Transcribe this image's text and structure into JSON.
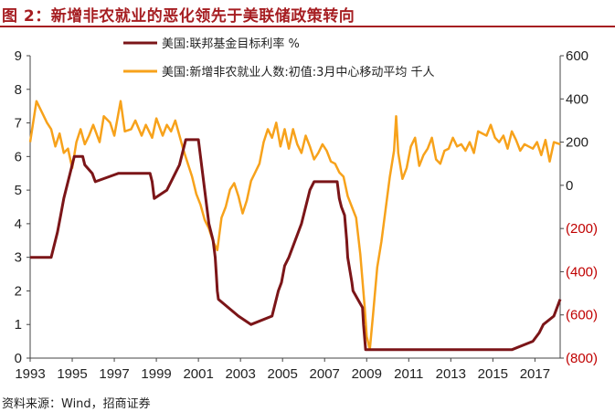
{
  "figure": {
    "title": "图 2：新增非农就业的恶化领先于美联储政策转向",
    "source": "资料来源：Wind，招商证券"
  },
  "colors": {
    "fed_rate": "#7b1518",
    "payrolls": "#f7a21b",
    "neg_label": "#c00000",
    "title": "#a61e22"
  },
  "chart_data": {
    "type": "line",
    "title": "新增非农就业的恶化领先于美联储政策转向",
    "x": {
      "range": [
        1993,
        2018.2
      ],
      "tick_values": [
        1993,
        1995,
        1997,
        1999,
        2001,
        2003,
        2005,
        2007,
        2009,
        2011,
        2013,
        2015,
        2017
      ],
      "tick_labels": [
        "1993",
        "1995",
        "1997",
        "1999",
        "2001",
        "2003",
        "2005",
        "2007",
        "2009",
        "2011",
        "2013",
        "2015",
        "2017"
      ]
    },
    "y_left": {
      "range": [
        0,
        9
      ],
      "ticks": [
        0,
        1,
        2,
        3,
        4,
        5,
        6,
        7,
        8,
        9
      ],
      "tick_labels": [
        "0",
        "1",
        "2",
        "3",
        "4",
        "5",
        "6",
        "7",
        "8",
        "9"
      ]
    },
    "y_right": {
      "range": [
        -800,
        600
      ],
      "ticks": [
        600,
        400,
        200,
        0,
        -200,
        -400,
        -600,
        -800
      ],
      "tick_labels": [
        "600",
        "400",
        "200",
        "0",
        "(200)",
        "(400)",
        "(600)",
        "(800)"
      ]
    },
    "series": [
      {
        "name": "美国:联邦基金目标利率 %",
        "axis": "left",
        "points": [
          [
            1993.0,
            3.0
          ],
          [
            1994.0,
            3.0
          ],
          [
            1994.1,
            3.25
          ],
          [
            1994.3,
            3.75
          ],
          [
            1994.45,
            4.25
          ],
          [
            1994.6,
            4.75
          ],
          [
            1994.9,
            5.5
          ],
          [
            1995.1,
            6.0
          ],
          [
            1995.5,
            6.0
          ],
          [
            1995.6,
            5.75
          ],
          [
            1995.95,
            5.5
          ],
          [
            1996.1,
            5.25
          ],
          [
            1997.2,
            5.5
          ],
          [
            1998.7,
            5.5
          ],
          [
            1998.8,
            5.25
          ],
          [
            1998.9,
            4.75
          ],
          [
            1999.5,
            5.0
          ],
          [
            1999.7,
            5.25
          ],
          [
            1999.9,
            5.5
          ],
          [
            2000.1,
            5.75
          ],
          [
            2000.2,
            6.0
          ],
          [
            2000.4,
            6.5
          ],
          [
            2001.0,
            6.5
          ],
          [
            2001.1,
            6.0
          ],
          [
            2001.2,
            5.5
          ],
          [
            2001.3,
            5.0
          ],
          [
            2001.4,
            4.5
          ],
          [
            2001.5,
            4.0
          ],
          [
            2001.6,
            3.75
          ],
          [
            2001.7,
            3.5
          ],
          [
            2001.8,
            3.0
          ],
          [
            2001.85,
            2.5
          ],
          [
            2001.9,
            2.0
          ],
          [
            2001.95,
            1.75
          ],
          [
            2002.9,
            1.25
          ],
          [
            2003.5,
            1.0
          ],
          [
            2004.5,
            1.25
          ],
          [
            2004.6,
            1.5
          ],
          [
            2004.8,
            2.0
          ],
          [
            2004.95,
            2.25
          ],
          [
            2005.1,
            2.75
          ],
          [
            2005.3,
            3.0
          ],
          [
            2005.6,
            3.5
          ],
          [
            2005.9,
            4.0
          ],
          [
            2006.1,
            4.5
          ],
          [
            2006.3,
            5.0
          ],
          [
            2006.5,
            5.25
          ],
          [
            2007.6,
            5.25
          ],
          [
            2007.7,
            4.75
          ],
          [
            2007.8,
            4.5
          ],
          [
            2007.95,
            4.25
          ],
          [
            2008.05,
            3.5
          ],
          [
            2008.1,
            3.0
          ],
          [
            2008.3,
            2.25
          ],
          [
            2008.35,
            2.0
          ],
          [
            2008.8,
            1.5
          ],
          [
            2008.85,
            1.0
          ],
          [
            2008.95,
            0.25
          ],
          [
            2015.9,
            0.25
          ],
          [
            2016.9,
            0.5
          ],
          [
            2017.2,
            0.75
          ],
          [
            2017.4,
            1.0
          ],
          [
            2017.9,
            1.25
          ],
          [
            2018.2,
            1.75
          ]
        ]
      },
      {
        "name": "美国:新增非农就业人数:初值:3月中心移动平均 千人",
        "axis": "right",
        "points": [
          [
            1993.0,
            200
          ],
          [
            1993.3,
            390
          ],
          [
            1993.6,
            330
          ],
          [
            1993.8,
            290
          ],
          [
            1994.0,
            260
          ],
          [
            1994.2,
            180
          ],
          [
            1994.4,
            240
          ],
          [
            1994.6,
            150
          ],
          [
            1994.8,
            170
          ],
          [
            1995.0,
            80
          ],
          [
            1995.2,
            200
          ],
          [
            1995.4,
            260
          ],
          [
            1995.6,
            190
          ],
          [
            1995.8,
            230
          ],
          [
            1996.0,
            280
          ],
          [
            1996.3,
            200
          ],
          [
            1996.5,
            320
          ],
          [
            1996.8,
            290
          ],
          [
            1997.0,
            230
          ],
          [
            1997.3,
            390
          ],
          [
            1997.5,
            250
          ],
          [
            1997.8,
            260
          ],
          [
            1998.0,
            300
          ],
          [
            1998.3,
            230
          ],
          [
            1998.5,
            280
          ],
          [
            1998.8,
            220
          ],
          [
            1999.0,
            310
          ],
          [
            1999.3,
            230
          ],
          [
            1999.5,
            280
          ],
          [
            1999.7,
            250
          ],
          [
            1999.9,
            300
          ],
          [
            2000.1,
            230
          ],
          [
            2000.3,
            160
          ],
          [
            2000.5,
            100
          ],
          [
            2000.7,
            40
          ],
          [
            2000.9,
            -40
          ],
          [
            2001.1,
            -90
          ],
          [
            2001.3,
            -160
          ],
          [
            2001.5,
            -200
          ],
          [
            2001.7,
            -260
          ],
          [
            2001.9,
            -300
          ],
          [
            2002.1,
            -150
          ],
          [
            2002.3,
            -100
          ],
          [
            2002.5,
            -20
          ],
          [
            2002.7,
            10
          ],
          [
            2002.9,
            -50
          ],
          [
            2003.1,
            -130
          ],
          [
            2003.3,
            -70
          ],
          [
            2003.5,
            20
          ],
          [
            2003.7,
            60
          ],
          [
            2003.9,
            100
          ],
          [
            2004.1,
            200
          ],
          [
            2004.3,
            260
          ],
          [
            2004.5,
            220
          ],
          [
            2004.7,
            290
          ],
          [
            2004.9,
            180
          ],
          [
            2005.1,
            260
          ],
          [
            2005.3,
            170
          ],
          [
            2005.5,
            260
          ],
          [
            2005.7,
            190
          ],
          [
            2005.9,
            150
          ],
          [
            2006.1,
            230
          ],
          [
            2006.3,
            180
          ],
          [
            2006.5,
            120
          ],
          [
            2006.7,
            150
          ],
          [
            2006.9,
            190
          ],
          [
            2007.1,
            160
          ],
          [
            2007.3,
            110
          ],
          [
            2007.5,
            100
          ],
          [
            2007.7,
            60
          ],
          [
            2007.9,
            40
          ],
          [
            2008.1,
            -50
          ],
          [
            2008.3,
            -100
          ],
          [
            2008.5,
            -150
          ],
          [
            2008.7,
            -320
          ],
          [
            2008.9,
            -560
          ],
          [
            2009.0,
            -700
          ],
          [
            2009.15,
            -760
          ],
          [
            2009.3,
            -600
          ],
          [
            2009.5,
            -380
          ],
          [
            2009.7,
            -260
          ],
          [
            2009.9,
            -110
          ],
          [
            2010.1,
            40
          ],
          [
            2010.3,
            160
          ],
          [
            2010.4,
            320
          ],
          [
            2010.5,
            150
          ],
          [
            2010.7,
            30
          ],
          [
            2010.9,
            80
          ],
          [
            2011.1,
            180
          ],
          [
            2011.3,
            220
          ],
          [
            2011.5,
            90
          ],
          [
            2011.7,
            140
          ],
          [
            2011.9,
            170
          ],
          [
            2012.1,
            220
          ],
          [
            2012.3,
            120
          ],
          [
            2012.5,
            100
          ],
          [
            2012.7,
            160
          ],
          [
            2012.9,
            170
          ],
          [
            2013.1,
            220
          ],
          [
            2013.3,
            180
          ],
          [
            2013.5,
            190
          ],
          [
            2013.7,
            160
          ],
          [
            2013.9,
            200
          ],
          [
            2014.1,
            150
          ],
          [
            2014.3,
            250
          ],
          [
            2014.5,
            240
          ],
          [
            2014.7,
            230
          ],
          [
            2014.9,
            280
          ],
          [
            2015.1,
            220
          ],
          [
            2015.3,
            200
          ],
          [
            2015.5,
            230
          ],
          [
            2015.7,
            170
          ],
          [
            2015.9,
            250
          ],
          [
            2016.1,
            210
          ],
          [
            2016.3,
            160
          ],
          [
            2016.5,
            190
          ],
          [
            2016.7,
            180
          ],
          [
            2016.9,
            170
          ],
          [
            2017.1,
            200
          ],
          [
            2017.3,
            140
          ],
          [
            2017.5,
            210
          ],
          [
            2017.7,
            110
          ],
          [
            2017.9,
            200
          ],
          [
            2018.2,
            190
          ]
        ]
      }
    ],
    "legend": [
      "美国:联邦基金目标利率 %",
      "美国:新增非农就业人数:初值:3月中心移动平均 千人"
    ]
  }
}
